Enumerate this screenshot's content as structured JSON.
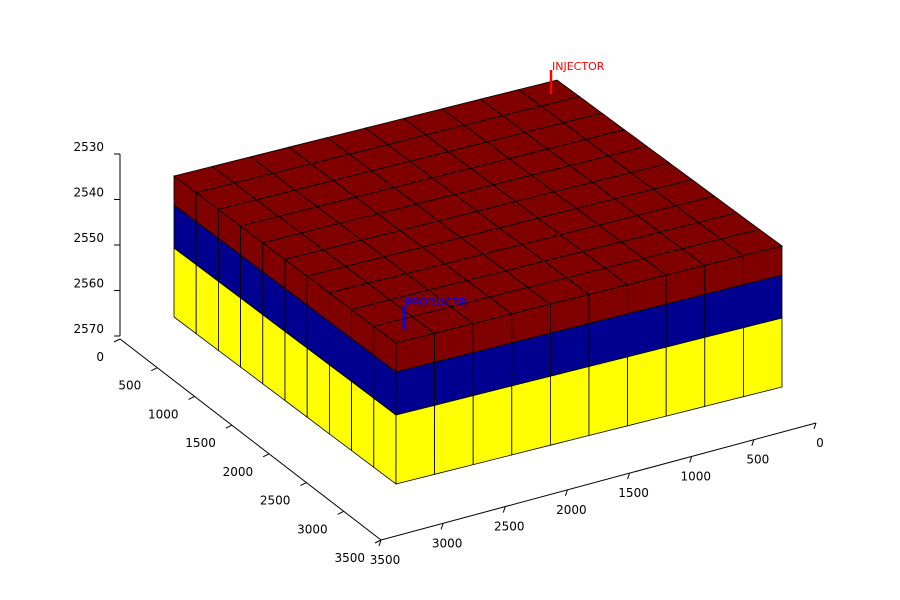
{
  "view": "3d-grid-model",
  "colors": {
    "layer_top": "#800000",
    "layer_middle": "#000090",
    "layer_bottom": "#ffff00",
    "cell_edge": "#000000",
    "axis": "#000000",
    "injector": "#ff0000",
    "producer": "#0000ff"
  },
  "grid": {
    "cells_x": 10,
    "cells_y": 10,
    "layers": [
      {
        "name": "top",
        "color_key": "layer_top"
      },
      {
        "name": "middle",
        "color_key": "layer_middle"
      },
      {
        "name": "bottom",
        "color_key": "layer_bottom"
      }
    ]
  },
  "axes": {
    "x_ticks": [
      "0",
      "500",
      "1000",
      "1500",
      "2000",
      "2500",
      "3000",
      "3500"
    ],
    "y_ticks": [
      "0",
      "500",
      "1000",
      "1500",
      "2000",
      "2500",
      "3000",
      "3500"
    ],
    "z_ticks": [
      "2530",
      "2540",
      "2550",
      "2560",
      "2570"
    ]
  },
  "wells": {
    "injector": {
      "label": "INJECTOR",
      "color_key": "injector"
    },
    "producer": {
      "label": "PRODUCER",
      "color_key": "producer"
    }
  }
}
